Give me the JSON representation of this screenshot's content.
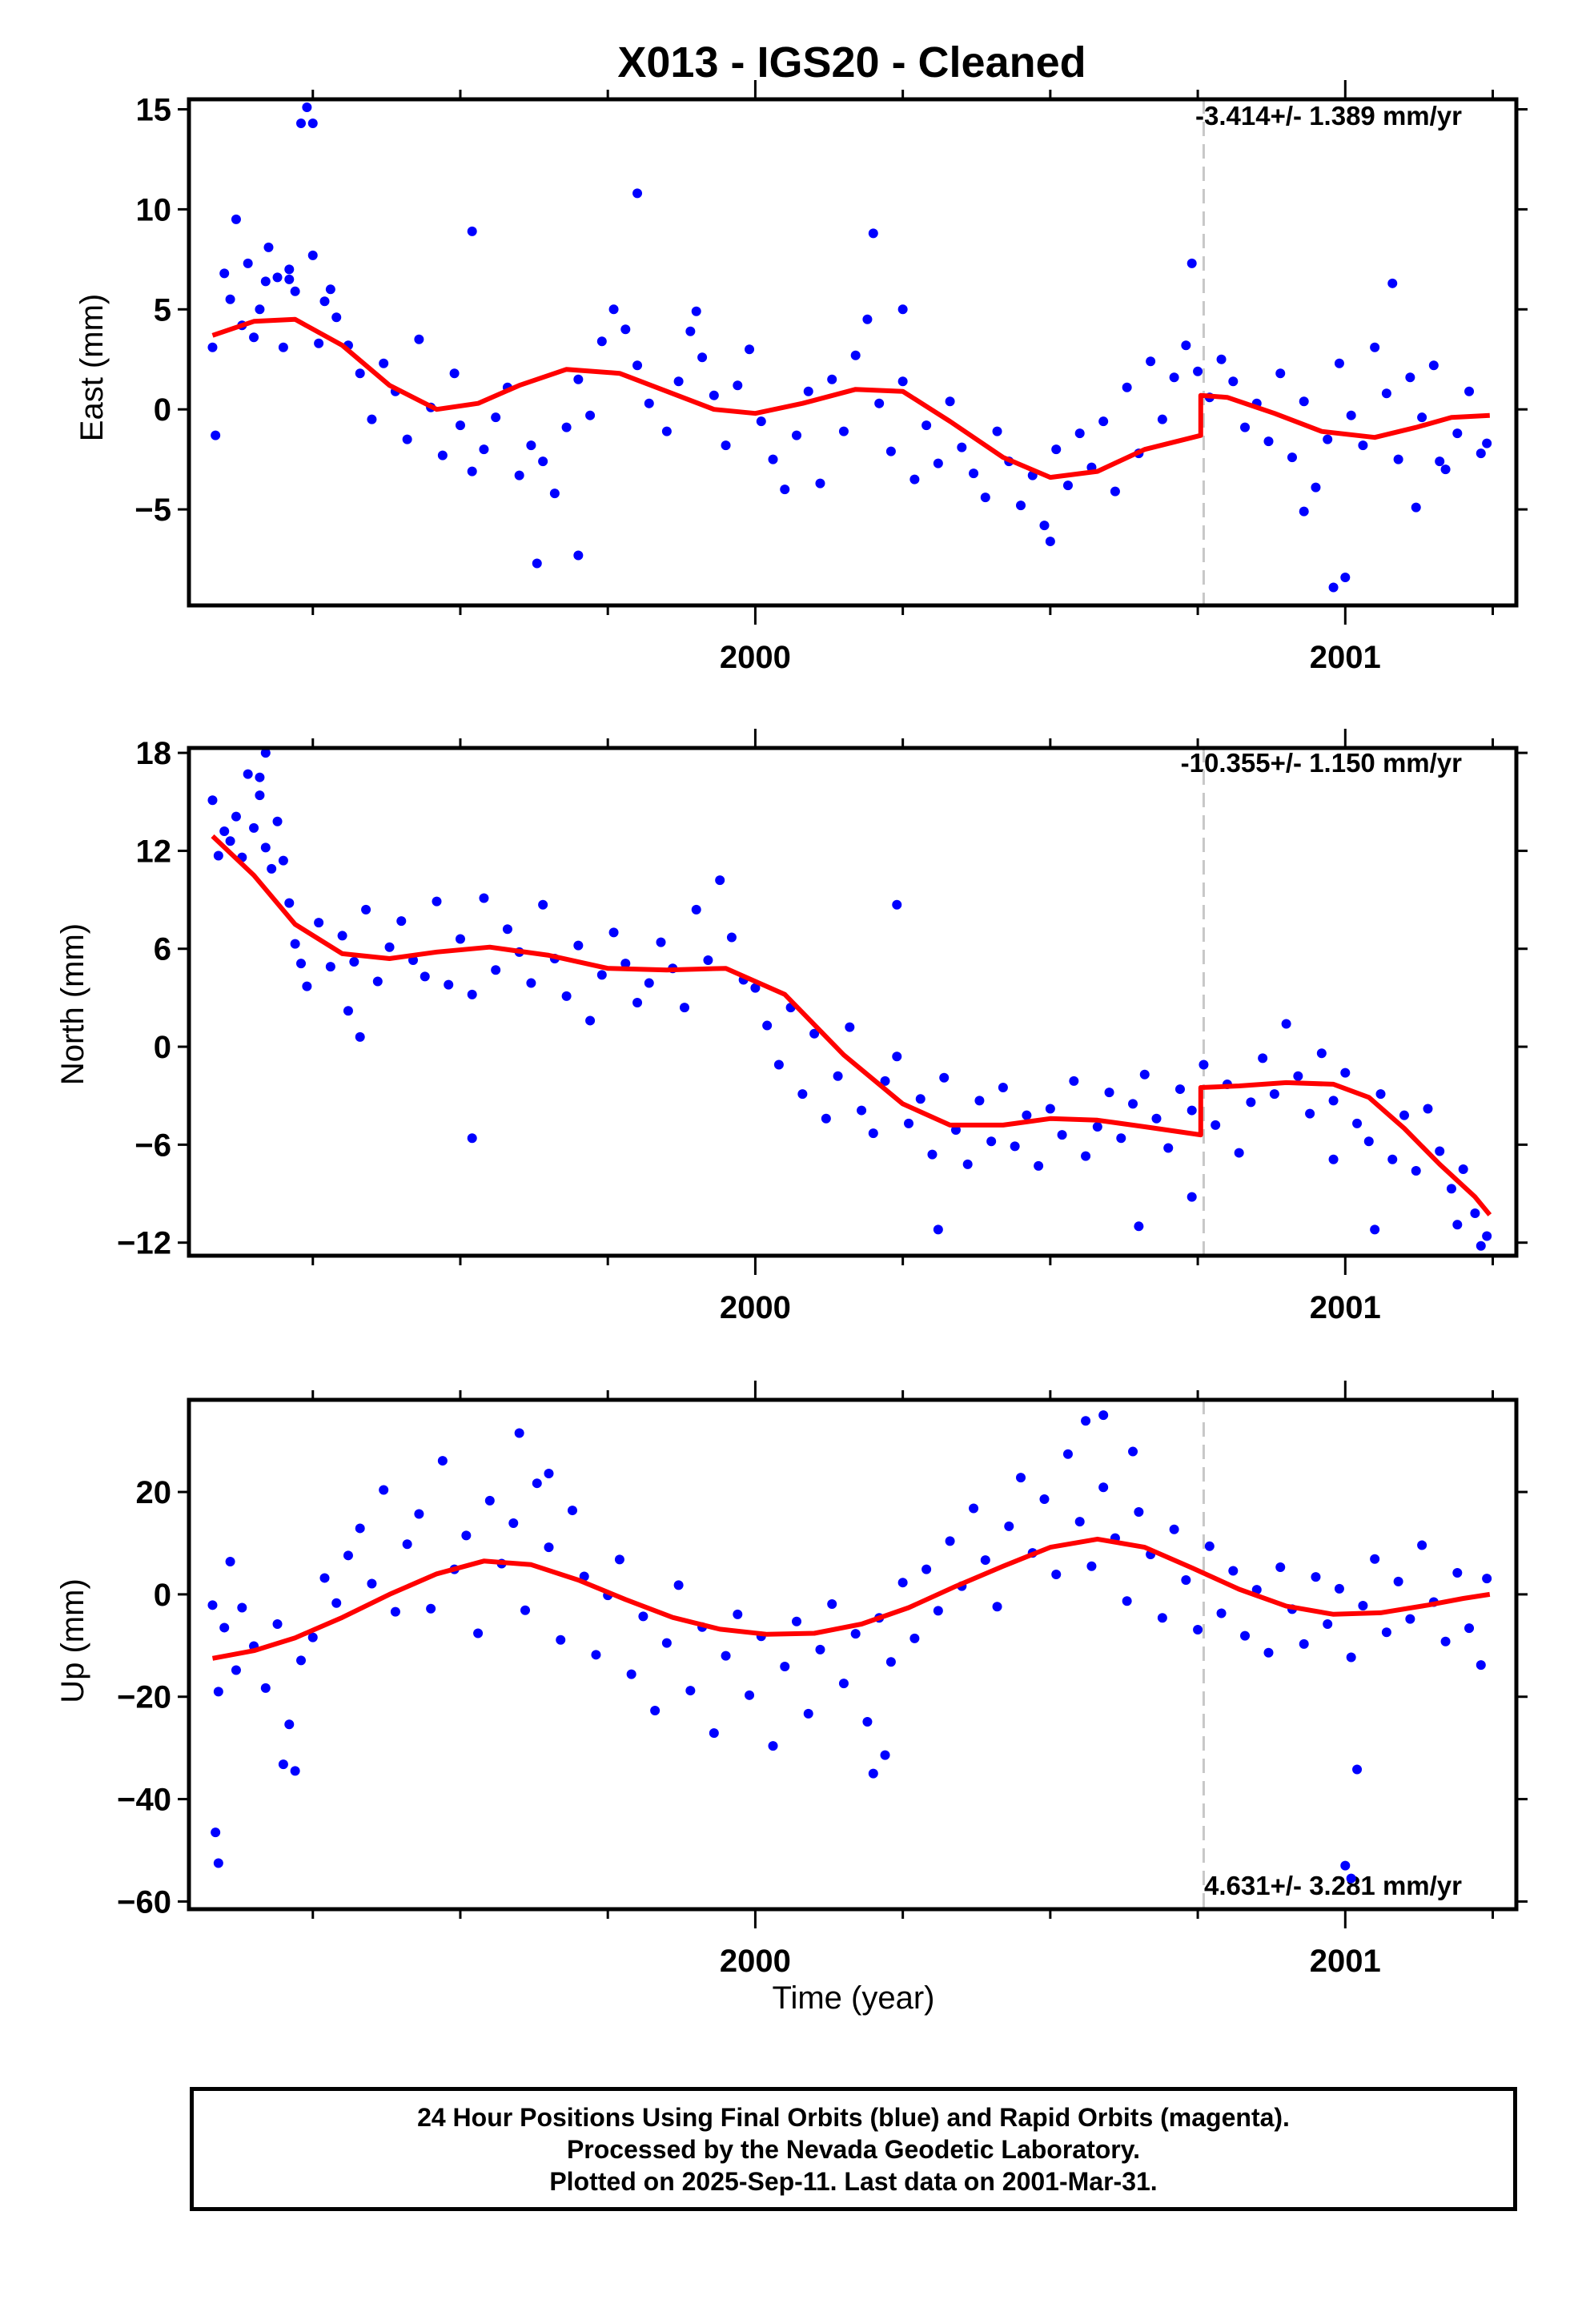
{
  "title": "X013  - IGS20 - Cleaned",
  "xlabel": "Time (year)",
  "footer": [
    "24 Hour Positions Using Final Orbits (blue) and Rapid Orbits (magenta).",
    "Processed by the Nevada Geodetic Laboratory.",
    "Plotted on 2025-Sep-11. Last data on 2001-Mar-31."
  ],
  "colors": {
    "points": "#0000ff",
    "model": "#ff0000",
    "equipment_change": "#c8c8c8"
  },
  "chart_data": [
    {
      "type": "scatter",
      "name": "east",
      "ylabel": "East (mm)",
      "rate": "-3.414+/- 1.389 mm/yr",
      "rate_position": "top-right",
      "xlim": [
        1999.04,
        2001.29
      ],
      "ylim": [
        -9.8,
        15.5
      ],
      "yticks": [
        -5,
        0,
        5,
        10,
        15
      ],
      "xticks": [
        2000,
        2001
      ],
      "xminor": [
        1999.25,
        1999.5,
        1999.75,
        2000.25,
        2000.5,
        2000.75,
        2001.25
      ],
      "offset_epoch": 2000.76,
      "model": {
        "x": [
          1999.08,
          1999.15,
          1999.22,
          1999.3,
          1999.38,
          1999.46,
          1999.53,
          1999.6,
          1999.68,
          1999.77,
          1999.85,
          1999.93,
          2000.0,
          2000.08,
          2000.17,
          2000.25,
          2000.33,
          2000.42,
          2000.5,
          2000.58,
          2000.66,
          2000.755,
          2000.755,
          2000.8,
          2000.88,
          2000.96,
          2001.05,
          2001.12,
          2001.18,
          2001.245
        ],
        "y": [
          3.7,
          4.4,
          4.5,
          3.2,
          1.2,
          0.0,
          0.3,
          1.2,
          2.0,
          1.8,
          0.9,
          0.0,
          -0.2,
          0.3,
          1.0,
          0.9,
          -0.6,
          -2.4,
          -3.4,
          -3.1,
          -2.0,
          -1.3,
          0.7,
          0.6,
          -0.2,
          -1.1,
          -1.4,
          -0.9,
          -0.4,
          -0.3
        ]
      },
      "points": {
        "x": [
          1999.08,
          1999.085,
          1999.1,
          1999.11,
          1999.12,
          1999.13,
          1999.14,
          1999.15,
          1999.16,
          1999.17,
          1999.175,
          1999.19,
          1999.2,
          1999.21,
          1999.22,
          1999.23,
          1999.24,
          1999.25,
          1999.26,
          1999.27,
          1999.28,
          1999.29,
          1999.31,
          1999.33,
          1999.35,
          1999.37,
          1999.39,
          1999.41,
          1999.43,
          1999.45,
          1999.47,
          1999.49,
          1999.5,
          1999.52,
          1999.54,
          1999.56,
          1999.58,
          1999.6,
          1999.62,
          1999.64,
          1999.66,
          1999.68,
          1999.7,
          1999.72,
          1999.74,
          1999.76,
          1999.78,
          1999.8,
          1999.82,
          1999.85,
          1999.87,
          1999.89,
          1999.91,
          1999.93,
          1999.95,
          1999.97,
          1999.99,
          2000.01,
          2000.03,
          2000.05,
          2000.07,
          2000.09,
          2000.11,
          2000.13,
          2000.15,
          2000.17,
          2000.19,
          2000.21,
          2000.23,
          2000.25,
          2000.27,
          2000.29,
          2000.31,
          2000.33,
          2000.35,
          2000.37,
          2000.39,
          2000.41,
          2000.43,
          2000.45,
          2000.47,
          2000.49,
          2000.51,
          2000.53,
          2000.55,
          2000.57,
          2000.59,
          2000.61,
          2000.63,
          2000.65,
          2000.67,
          2000.69,
          2000.71,
          2000.73,
          2000.75,
          2000.77,
          2000.79,
          2000.81,
          2000.83,
          2000.85,
          2000.87,
          2000.89,
          2000.91,
          2000.93,
          2000.95,
          2000.97,
          2000.99,
          2001.01,
          2001.03,
          2001.05,
          2001.07,
          2001.09,
          2001.11,
          2001.13,
          2001.15,
          2001.17,
          2001.19,
          2001.21,
          2001.23,
          2001.24,
          2001.12,
          2001.16,
          2000.98,
          2001.0,
          2000.93,
          2000.2,
          1999.25,
          1999.21,
          1999.63,
          1999.7,
          1999.52,
          1999.8,
          1999.9,
          2000.25,
          2000.5,
          2000.74,
          2001.08
        ],
        "y": [
          3.1,
          -1.3,
          6.8,
          5.5,
          9.5,
          4.2,
          7.3,
          3.6,
          5.0,
          6.4,
          8.1,
          6.6,
          3.1,
          7.0,
          5.9,
          14.3,
          15.1,
          7.7,
          3.3,
          5.4,
          6.0,
          4.6,
          3.2,
          1.8,
          -0.5,
          2.3,
          0.9,
          -1.5,
          3.5,
          0.1,
          -2.3,
          1.8,
          -0.8,
          -3.1,
          -2.0,
          -0.4,
          1.1,
          -3.3,
          -1.8,
          -2.6,
          -4.2,
          -0.9,
          1.5,
          -0.3,
          3.4,
          5.0,
          4.0,
          2.2,
          0.3,
          -1.1,
          1.4,
          3.9,
          2.6,
          0.7,
          -1.8,
          1.2,
          3.0,
          -0.6,
          -2.5,
          -4.0,
          -1.3,
          0.9,
          -3.7,
          1.5,
          -1.1,
          2.7,
          4.5,
          0.3,
          -2.1,
          1.4,
          -3.5,
          -0.8,
          -2.7,
          0.4,
          -1.9,
          -3.2,
          -4.4,
          -1.1,
          -2.6,
          -4.8,
          -3.3,
          -5.8,
          -2.0,
          -3.8,
          -1.2,
          -2.9,
          -0.6,
          -4.1,
          1.1,
          -2.2,
          2.4,
          -0.5,
          1.6,
          3.2,
          1.9,
          0.6,
          2.5,
          1.4,
          -0.9,
          0.3,
          -1.6,
          1.8,
          -2.4,
          0.4,
          -3.9,
          -1.5,
          2.3,
          -0.3,
          -1.8,
          3.1,
          0.8,
          -2.5,
          1.6,
          -0.4,
          2.2,
          -3.0,
          -1.2,
          0.9,
          -2.2,
          -1.7,
          -4.9,
          -2.6,
          -8.9,
          -8.4,
          -5.1,
          8.8,
          14.3,
          6.5,
          -7.7,
          -7.3,
          8.9,
          10.8,
          4.9,
          5.0,
          -6.6,
          7.3,
          6.3
        ]
      }
    },
    {
      "type": "scatter",
      "name": "north",
      "ylabel": "North (mm)",
      "rate": "-10.355+/- 1.150 mm/yr",
      "rate_position": "top-right",
      "xlim": [
        1999.04,
        2001.29
      ],
      "ylim": [
        -12.8,
        18.3
      ],
      "yticks": [
        -12,
        -6,
        0,
        6,
        12,
        18
      ],
      "xticks": [
        2000,
        2001
      ],
      "xminor": [
        1999.25,
        1999.5,
        1999.75,
        2000.25,
        2000.5,
        2000.75,
        2001.25
      ],
      "offset_epoch": 2000.76,
      "model": {
        "x": [
          1999.08,
          1999.15,
          1999.22,
          1999.3,
          1999.38,
          1999.46,
          1999.55,
          1999.65,
          1999.75,
          1999.85,
          1999.95,
          2000.05,
          2000.15,
          2000.25,
          2000.33,
          2000.42,
          2000.5,
          2000.58,
          2000.66,
          2000.755,
          2000.755,
          2000.82,
          2000.9,
          2000.98,
          2001.04,
          2001.1,
          2001.16,
          2001.22,
          2001.245
        ],
        "y": [
          12.9,
          10.5,
          7.5,
          5.7,
          5.4,
          5.8,
          6.1,
          5.6,
          4.8,
          4.7,
          4.8,
          3.2,
          -0.5,
          -3.5,
          -4.8,
          -4.8,
          -4.4,
          -4.5,
          -4.9,
          -5.4,
          -2.5,
          -2.4,
          -2.2,
          -2.3,
          -3.1,
          -5.0,
          -7.2,
          -9.2,
          -10.3
        ]
      },
      "points": {
        "x": [
          1999.08,
          1999.09,
          1999.1,
          1999.11,
          1999.12,
          1999.13,
          1999.14,
          1999.15,
          1999.16,
          1999.17,
          1999.18,
          1999.19,
          1999.2,
          1999.21,
          1999.22,
          1999.23,
          1999.24,
          1999.26,
          1999.28,
          1999.3,
          1999.32,
          1999.34,
          1999.36,
          1999.38,
          1999.4,
          1999.42,
          1999.44,
          1999.46,
          1999.48,
          1999.5,
          1999.52,
          1999.54,
          1999.56,
          1999.58,
          1999.6,
          1999.62,
          1999.64,
          1999.66,
          1999.68,
          1999.7,
          1999.72,
          1999.74,
          1999.76,
          1999.78,
          1999.8,
          1999.82,
          1999.84,
          1999.86,
          1999.88,
          1999.9,
          1999.92,
          1999.94,
          1999.96,
          1999.98,
          2000.0,
          2000.02,
          2000.04,
          2000.06,
          2000.08,
          2000.1,
          2000.12,
          2000.14,
          2000.16,
          2000.18,
          2000.2,
          2000.22,
          2000.24,
          2000.26,
          2000.28,
          2000.3,
          2000.32,
          2000.34,
          2000.36,
          2000.38,
          2000.4,
          2000.42,
          2000.44,
          2000.46,
          2000.48,
          2000.5,
          2000.52,
          2000.54,
          2000.56,
          2000.58,
          2000.6,
          2000.62,
          2000.64,
          2000.66,
          2000.68,
          2000.7,
          2000.72,
          2000.74,
          2000.76,
          2000.78,
          2000.8,
          2000.82,
          2000.84,
          2000.86,
          2000.88,
          2000.9,
          2000.92,
          2000.94,
          2000.96,
          2000.98,
          2001.0,
          2001.02,
          2001.04,
          2001.06,
          2001.08,
          2001.1,
          2001.12,
          2001.14,
          2001.16,
          2001.18,
          2001.2,
          2001.22,
          2001.24,
          1999.31,
          1999.33,
          1999.52,
          2000.24,
          2000.31,
          2000.65,
          2000.74,
          2000.98,
          2001.05,
          2001.19,
          2001.23,
          1999.16,
          1999.17
        ],
        "y": [
          15.1,
          11.7,
          13.2,
          12.6,
          14.1,
          11.6,
          16.7,
          13.4,
          15.4,
          12.2,
          10.9,
          13.8,
          11.4,
          8.8,
          6.3,
          5.1,
          3.7,
          7.6,
          4.9,
          6.8,
          5.2,
          8.4,
          4.0,
          6.1,
          7.7,
          5.3,
          4.3,
          8.9,
          3.8,
          6.6,
          3.2,
          9.1,
          4.7,
          7.2,
          5.8,
          3.9,
          8.7,
          5.4,
          3.1,
          6.2,
          1.6,
          4.4,
          7.0,
          5.1,
          2.7,
          3.9,
          6.4,
          4.8,
          2.4,
          8.4,
          5.3,
          10.2,
          6.7,
          4.1,
          3.6,
          1.3,
          -1.1,
          2.4,
          -2.9,
          0.8,
          -4.4,
          -1.8,
          1.2,
          -3.9,
          -5.3,
          -2.1,
          -0.6,
          -4.7,
          -3.2,
          -6.6,
          -1.9,
          -5.1,
          -7.2,
          -3.3,
          -5.8,
          -2.5,
          -6.1,
          -4.2,
          -7.3,
          -3.8,
          -5.4,
          -2.1,
          -6.7,
          -4.9,
          -2.8,
          -5.6,
          -3.5,
          -1.7,
          -4.4,
          -6.2,
          -2.6,
          -3.9,
          -1.1,
          -4.8,
          -2.3,
          -6.5,
          -3.4,
          -0.7,
          -2.9,
          1.4,
          -1.8,
          -4.1,
          -0.4,
          -3.3,
          -1.6,
          -4.7,
          -5.8,
          -2.9,
          -6.9,
          -4.2,
          -7.6,
          -3.8,
          -6.4,
          -8.7,
          -7.5,
          -10.2,
          -11.6,
          2.2,
          0.6,
          -5.6,
          8.7,
          -11.2,
          -11.0,
          -9.2,
          -6.9,
          -11.2,
          -10.9,
          -12.2,
          16.5,
          18.0
        ]
      }
    },
    {
      "type": "scatter",
      "name": "up",
      "ylabel": "Up (mm)",
      "rate": "4.631+/- 3.281 mm/yr",
      "rate_position": "bottom-right",
      "xlim": [
        1999.04,
        2001.29
      ],
      "ylim": [
        -61.5,
        38
      ],
      "yticks": [
        -60,
        -40,
        -20,
        0,
        20
      ],
      "xticks": [
        2000,
        2001
      ],
      "xminor": [
        1999.25,
        1999.5,
        1999.75,
        2000.25,
        2000.5,
        2000.75,
        2001.25
      ],
      "offset_epoch": 2000.76,
      "model": {
        "x": [
          1999.08,
          1999.15,
          1999.22,
          1999.3,
          1999.38,
          1999.46,
          1999.54,
          1999.62,
          1999.7,
          1999.78,
          1999.86,
          1999.94,
          2000.02,
          2000.1,
          2000.18,
          2000.26,
          2000.34,
          2000.42,
          2000.5,
          2000.58,
          2000.66,
          2000.74,
          2000.82,
          2000.9,
          2000.98,
          2001.06,
          2001.14,
          2001.2,
          2001.245
        ],
        "y": [
          -12.5,
          -11.0,
          -8.5,
          -4.5,
          0.0,
          4.0,
          6.5,
          5.8,
          2.8,
          -1.0,
          -4.5,
          -6.8,
          -7.8,
          -7.6,
          -5.8,
          -2.6,
          1.6,
          5.5,
          9.2,
          10.8,
          9.2,
          5.2,
          1.0,
          -2.3,
          -3.9,
          -3.6,
          -2.1,
          -0.8,
          0.0
        ]
      },
      "points": {
        "x": [
          1999.08,
          1999.09,
          1999.1,
          1999.11,
          1999.12,
          1999.13,
          1999.15,
          1999.17,
          1999.19,
          1999.21,
          1999.23,
          1999.25,
          1999.27,
          1999.29,
          1999.31,
          1999.33,
          1999.35,
          1999.37,
          1999.39,
          1999.41,
          1999.43,
          1999.45,
          1999.47,
          1999.49,
          1999.51,
          1999.53,
          1999.55,
          1999.57,
          1999.59,
          1999.61,
          1999.63,
          1999.65,
          1999.67,
          1999.69,
          1999.71,
          1999.73,
          1999.75,
          1999.77,
          1999.79,
          1999.81,
          1999.83,
          1999.85,
          1999.87,
          1999.89,
          1999.91,
          1999.93,
          1999.95,
          1999.97,
          1999.99,
          2000.01,
          2000.03,
          2000.05,
          2000.07,
          2000.09,
          2000.11,
          2000.13,
          2000.15,
          2000.17,
          2000.19,
          2000.21,
          2000.23,
          2000.25,
          2000.27,
          2000.29,
          2000.31,
          2000.33,
          2000.35,
          2000.37,
          2000.39,
          2000.41,
          2000.43,
          2000.45,
          2000.47,
          2000.49,
          2000.51,
          2000.53,
          2000.55,
          2000.57,
          2000.59,
          2000.61,
          2000.63,
          2000.65,
          2000.67,
          2000.69,
          2000.71,
          2000.73,
          2000.75,
          2000.77,
          2000.79,
          2000.81,
          2000.83,
          2000.85,
          2000.87,
          2000.89,
          2000.91,
          2000.93,
          2000.95,
          2000.97,
          2000.99,
          2001.01,
          2001.03,
          2001.05,
          2001.07,
          2001.09,
          2001.11,
          2001.13,
          2001.15,
          2001.17,
          2001.19,
          2001.21,
          2001.23,
          2001.24,
          1999.085,
          1999.09,
          1999.2,
          1999.22,
          1999.6,
          1999.65,
          2000.2,
          2000.22,
          2000.56,
          2000.59,
          2000.64,
          2001.0,
          2001.01,
          2001.02
        ],
        "y": [
          -2.1,
          -19.0,
          -6.5,
          6.4,
          -14.8,
          -2.6,
          -10.1,
          -18.3,
          -5.8,
          -25.4,
          -12.9,
          -8.4,
          3.2,
          -1.7,
          7.6,
          12.9,
          2.1,
          20.4,
          -3.4,
          9.8,
          15.7,
          -2.8,
          26.1,
          4.9,
          11.5,
          -7.6,
          18.3,
          6.0,
          13.9,
          -3.1,
          21.7,
          9.2,
          -8.9,
          16.4,
          3.5,
          -11.8,
          -0.2,
          6.8,
          -15.6,
          -4.3,
          -22.7,
          -9.5,
          1.8,
          -18.8,
          -6.4,
          -27.1,
          -12.0,
          -3.9,
          -19.7,
          -8.2,
          -29.6,
          -14.1,
          -5.3,
          -23.3,
          -10.8,
          -1.9,
          -17.4,
          -7.7,
          -24.9,
          -4.6,
          -13.2,
          2.3,
          -8.6,
          4.9,
          -3.2,
          10.4,
          1.6,
          16.8,
          6.7,
          -2.4,
          13.3,
          22.8,
          8.1,
          18.6,
          3.9,
          27.4,
          14.2,
          5.5,
          20.9,
          11.0,
          -1.3,
          16.1,
          7.8,
          -4.6,
          12.7,
          2.8,
          -6.9,
          9.4,
          -3.7,
          4.6,
          -8.1,
          0.9,
          -11.4,
          5.3,
          -2.9,
          -9.7,
          3.4,
          -5.8,
          1.1,
          -12.3,
          -2.2,
          6.9,
          -7.4,
          2.5,
          -4.8,
          9.6,
          -1.5,
          -9.2,
          4.2,
          -6.6,
          -13.8,
          3.1,
          -46.5,
          -52.5,
          -33.2,
          -34.5,
          31.5,
          23.6,
          -35.0,
          -31.4,
          33.9,
          35.0,
          27.9,
          -53.0,
          -55.5,
          -34.2
        ]
      }
    }
  ]
}
